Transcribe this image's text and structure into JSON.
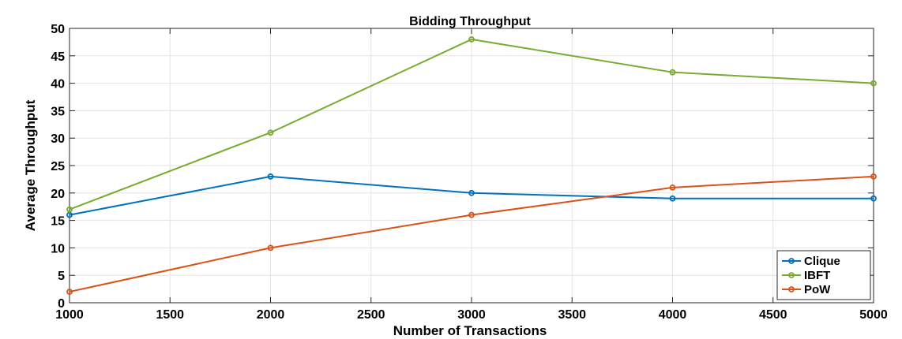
{
  "chart_data": {
    "type": "line",
    "title": "Bidding Throughput",
    "xlabel": "Number of Transactions",
    "ylabel": "Average Throughput",
    "x": [
      1000,
      2000,
      3000,
      4000,
      5000
    ],
    "xlim": [
      1000,
      5000
    ],
    "ylim": [
      0,
      50
    ],
    "xticks": [
      1000,
      1500,
      2000,
      2500,
      3000,
      3500,
      4000,
      4500,
      5000
    ],
    "yticks": [
      0,
      5,
      10,
      15,
      20,
      25,
      30,
      35,
      40,
      45,
      50
    ],
    "grid": true,
    "legend_position": "bottom-right",
    "series": [
      {
        "name": "Clique",
        "color": "#0072bd",
        "values": [
          16,
          23,
          20,
          19,
          19
        ]
      },
      {
        "name": "IBFT",
        "color": "#77ac30",
        "values": [
          17,
          31,
          48,
          42,
          40
        ]
      },
      {
        "name": "PoW",
        "color": "#d95319",
        "values": [
          2,
          10,
          16,
          21,
          23
        ]
      }
    ]
  }
}
